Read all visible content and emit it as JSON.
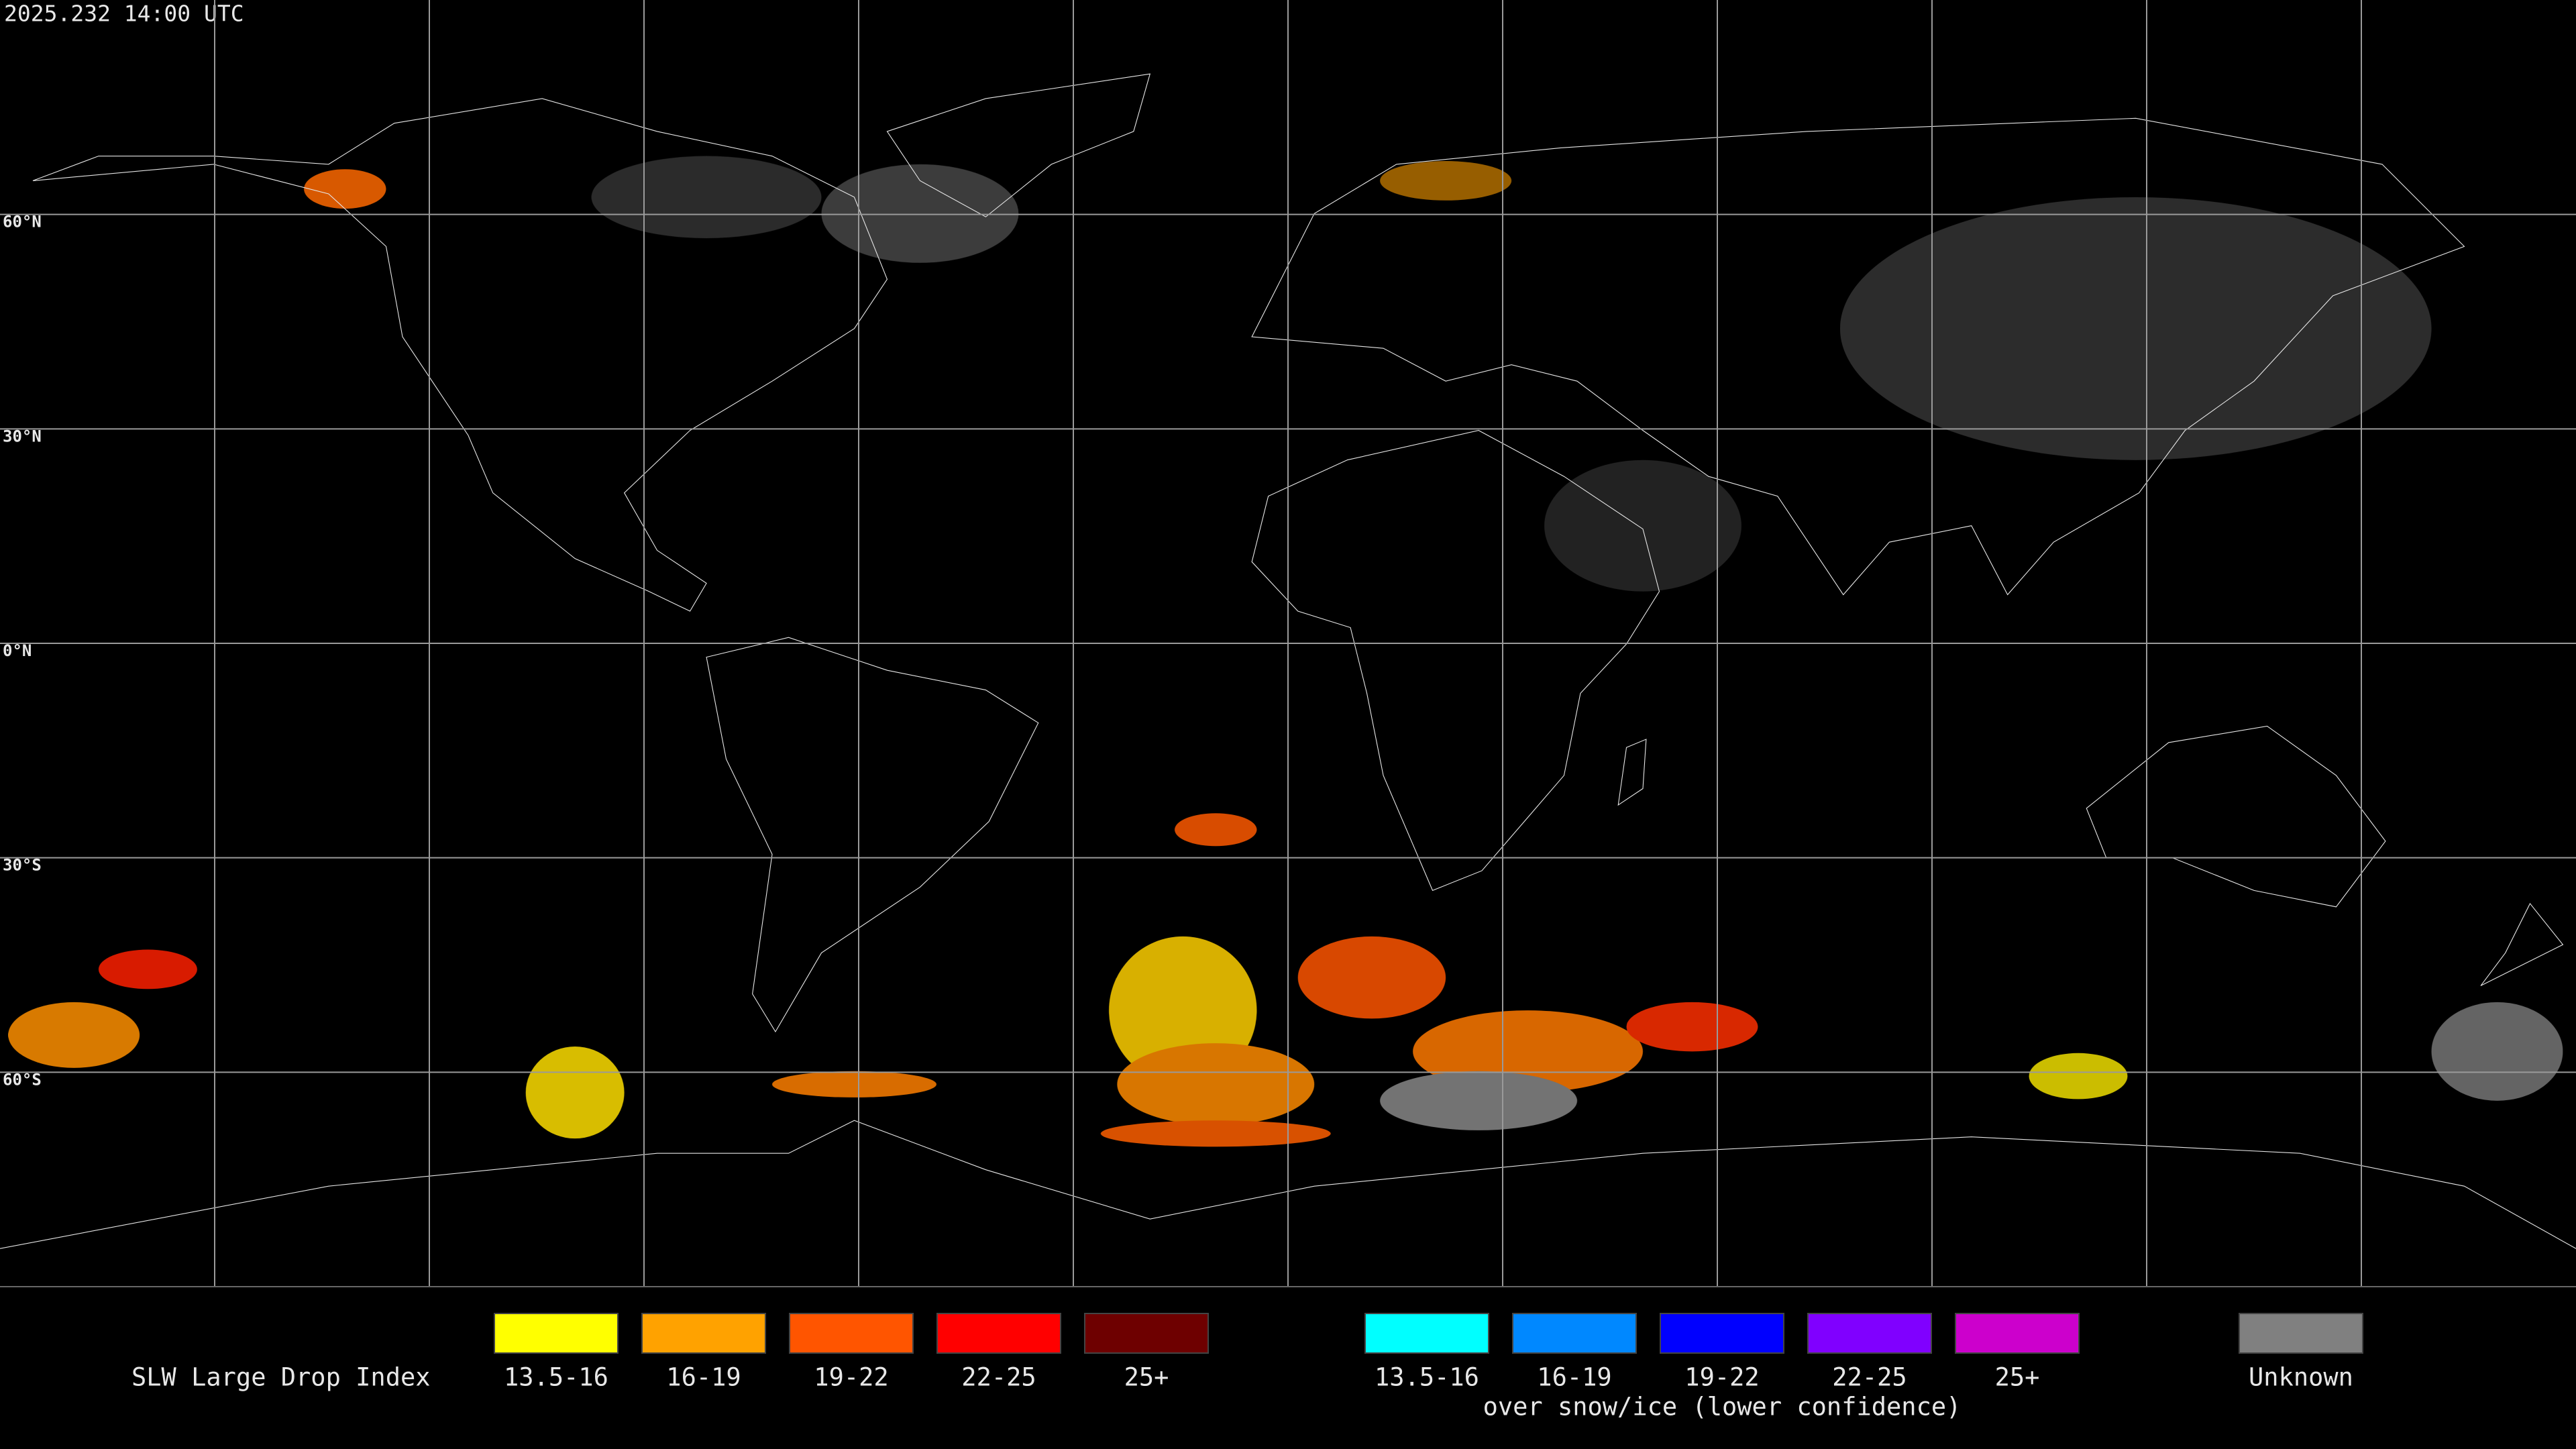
{
  "header": {
    "timestamp": "2025.232 14:00 UTC"
  },
  "map": {
    "latitude_labels": [
      "60°N",
      "30°N",
      "0°N",
      "30°S",
      "60°S"
    ]
  },
  "legend": {
    "title": "SLW Large Drop Index",
    "groups": [
      {
        "items": [
          {
            "label": "13.5-16",
            "color": "#ffff00"
          },
          {
            "label": "16-19",
            "color": "#ffa200"
          },
          {
            "label": "19-22",
            "color": "#ff5500"
          },
          {
            "label": "22-25",
            "color": "#ff0000"
          },
          {
            "label": "25+",
            "color": "#6e0000"
          }
        ]
      },
      {
        "items": [
          {
            "label": "13.5-16",
            "color": "#00ffff"
          },
          {
            "label": "16-19",
            "color": "#0088ff"
          },
          {
            "label": "19-22",
            "color": "#0000ff"
          },
          {
            "label": "22-25",
            "color": "#8000ff"
          },
          {
            "label": "25+",
            "color": "#cc00cc"
          }
        ],
        "caption": "over snow/ice (lower confidence)"
      },
      {
        "items": [
          {
            "label": "Unknown",
            "color": "#808080"
          }
        ]
      }
    ]
  }
}
